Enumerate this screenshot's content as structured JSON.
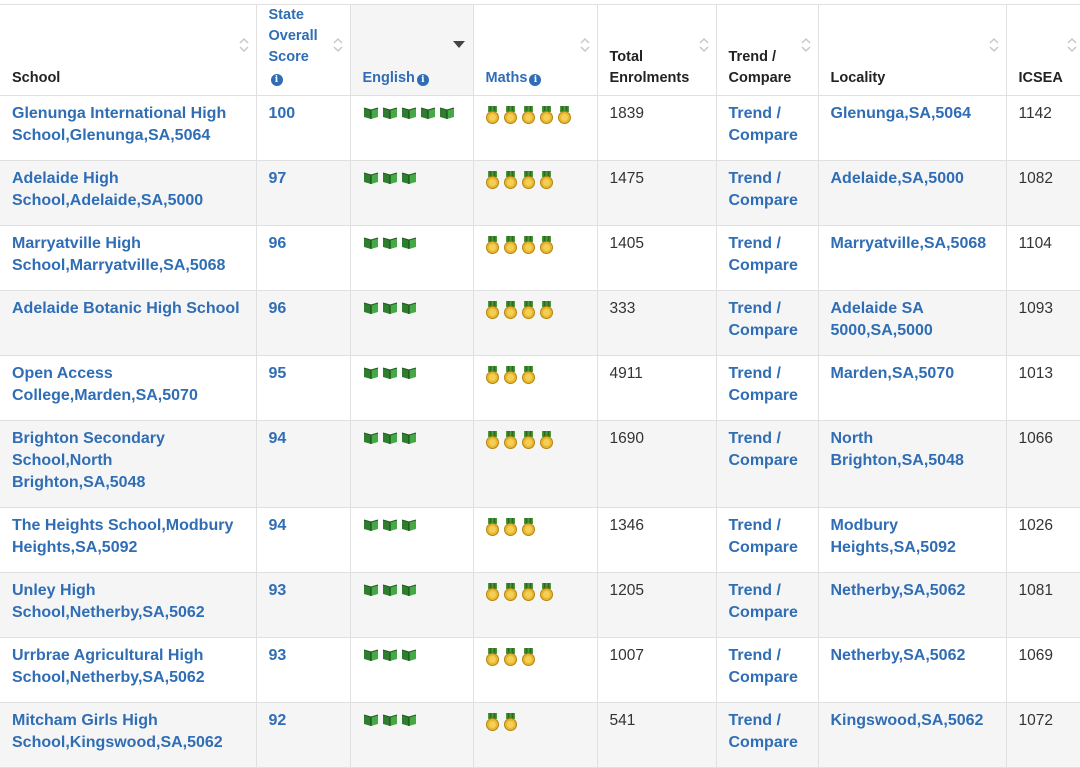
{
  "headers": {
    "school": "School",
    "score": "State Overall Score",
    "english": "English",
    "maths": "Maths",
    "total": "Total Enrolments",
    "trend": "Trend / Compare",
    "locality": "Locality",
    "icsea": "ICSEA"
  },
  "icons": {
    "english": "book-icon",
    "maths": "medal-icon",
    "info": "info-icon"
  },
  "colors": {
    "link": "#2f6db5",
    "row_alt": "#f5f5f5",
    "book_green": "#3a9a3a",
    "medal_gold": "#e8b830"
  },
  "rows": [
    {
      "school": "Glenunga International High School,Glenunga,SA,5064",
      "score": "100",
      "english_books": 5,
      "maths_medals": 5,
      "total": "1839",
      "trend": "Trend / Compare",
      "locality": "Glenunga,SA,5064",
      "icsea": "1142"
    },
    {
      "school": "Adelaide High School,Adelaide,SA,5000",
      "score": "97",
      "english_books": 3,
      "maths_medals": 4,
      "total": "1475",
      "trend": "Trend / Compare",
      "locality": "Adelaide,SA,5000",
      "icsea": "1082"
    },
    {
      "school": "Marryatville High School,Marryatville,SA,5068",
      "score": "96",
      "english_books": 3,
      "maths_medals": 4,
      "total": "1405",
      "trend": "Trend / Compare",
      "locality": "Marryatville,SA,5068",
      "icsea": "1104"
    },
    {
      "school": "Adelaide Botanic High School",
      "score": "96",
      "english_books": 3,
      "maths_medals": 4,
      "total": "333",
      "trend": "Trend / Compare",
      "locality": "Adelaide SA 5000,SA,5000",
      "icsea": "1093"
    },
    {
      "school": "Open Access College,Marden,SA,5070",
      "score": "95",
      "english_books": 3,
      "maths_medals": 3,
      "total": "4911",
      "trend": "Trend / Compare",
      "locality": "Marden,SA,5070",
      "icsea": "1013"
    },
    {
      "school": "Brighton Secondary School,North Brighton,SA,5048",
      "score": "94",
      "english_books": 3,
      "maths_medals": 4,
      "total": "1690",
      "trend": "Trend / Compare",
      "locality": "North Brighton,SA,5048",
      "icsea": "1066"
    },
    {
      "school": "The Heights School,Modbury Heights,SA,5092",
      "score": "94",
      "english_books": 3,
      "maths_medals": 3,
      "total": "1346",
      "trend": "Trend / Compare",
      "locality": "Modbury Heights,SA,5092",
      "icsea": "1026"
    },
    {
      "school": "Unley High School,Netherby,SA,5062",
      "score": "93",
      "english_books": 3,
      "maths_medals": 4,
      "total": "1205",
      "trend": "Trend / Compare",
      "locality": "Netherby,SA,5062",
      "icsea": "1081"
    },
    {
      "school": "Urrbrae Agricultural High School,Netherby,SA,5062",
      "score": "93",
      "english_books": 3,
      "maths_medals": 3,
      "total": "1007",
      "trend": "Trend / Compare",
      "locality": "Netherby,SA,5062",
      "icsea": "1069"
    },
    {
      "school": "Mitcham Girls High School,Kingswood,SA,5062",
      "score": "92",
      "english_books": 3,
      "maths_medals": 2,
      "total": "541",
      "trend": "Trend / Compare",
      "locality": "Kingswood,SA,5062",
      "icsea": "1072"
    }
  ]
}
